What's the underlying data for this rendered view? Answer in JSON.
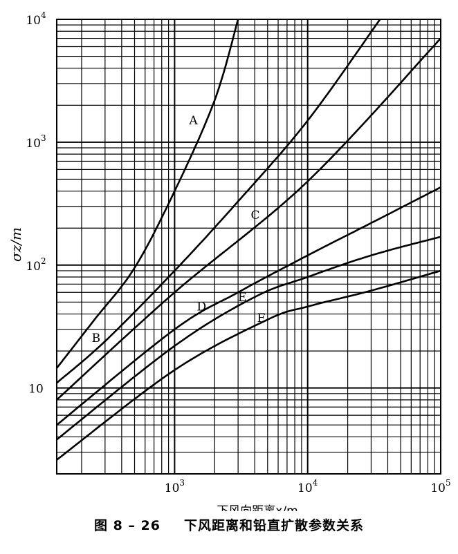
{
  "chart_data": {
    "type": "line",
    "xscale": "log",
    "yscale": "log",
    "xlim": [
      130,
      100000
    ],
    "ylim": [
      2,
      10000
    ],
    "xlabel": "下风向距离x/m",
    "ylabel": "σz/m",
    "grid": true,
    "x_ticks": [
      {
        "label": "10",
        "sup": "3",
        "value": 1000
      },
      {
        "label": "10",
        "sup": "4",
        "value": 10000
      },
      {
        "label": "10",
        "sup": "5",
        "value": 100000
      }
    ],
    "y_ticks": [
      {
        "label": "10",
        "sup": "",
        "value": 10
      },
      {
        "label": "10",
        "sup": "2",
        "value": 100
      },
      {
        "label": "10",
        "sup": "3",
        "value": 1000
      },
      {
        "label": "10",
        "sup": "4",
        "value": 10000
      }
    ],
    "series": [
      {
        "name": "A",
        "x": [
          130,
          250,
          500,
          1000,
          2000,
          3000
        ],
        "y": [
          14.5,
          36,
          95,
          400,
          2200,
          10000
        ]
      },
      {
        "name": "B",
        "x": [
          130,
          300,
          1000,
          3000,
          10000,
          35000
        ],
        "y": [
          11,
          24,
          90,
          330,
          1500,
          10000
        ]
      },
      {
        "name": "C",
        "x": [
          130,
          1000,
          10000,
          100000
        ],
        "y": [
          8,
          60,
          480,
          7000
        ]
      },
      {
        "name": "D",
        "x": [
          130,
          1000,
          3000,
          10000,
          30000,
          100000
        ],
        "y": [
          5,
          30,
          60,
          120,
          220,
          430
        ]
      },
      {
        "name": "E",
        "x": [
          130,
          1000,
          4000,
          10000,
          30000,
          100000
        ],
        "y": [
          3.8,
          22,
          55,
          80,
          120,
          170
        ]
      },
      {
        "name": "F",
        "x": [
          130,
          1000,
          5000,
          10000,
          30000,
          100000
        ],
        "y": [
          2.6,
          14,
          36,
          46,
          62,
          90
        ]
      }
    ]
  },
  "caption": {
    "figure_number": "图 8 – 26",
    "title": "下风距离和铅直扩散参数关系"
  }
}
